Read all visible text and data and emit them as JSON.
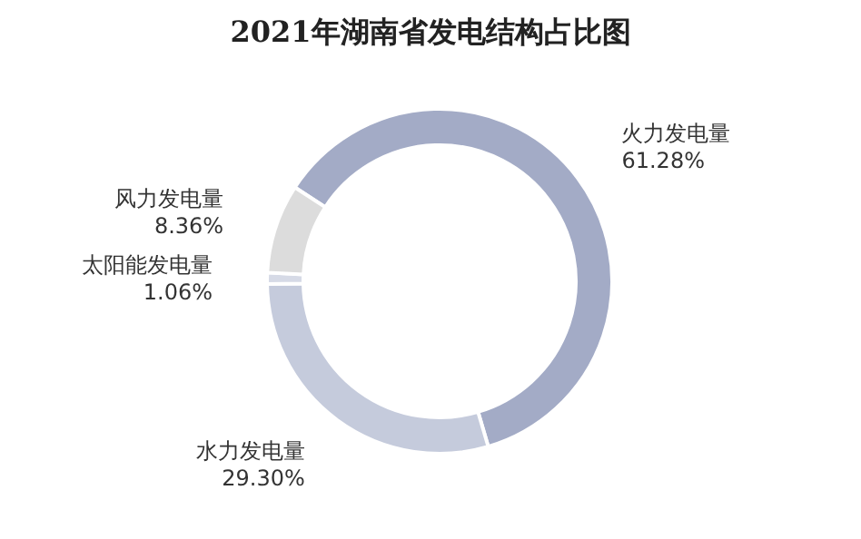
{
  "chart_data": {
    "type": "donut",
    "title": "2021年湖南省发电结构占比图",
    "categories": [
      "火力发电量",
      "水力发电量",
      "太阳能发电量",
      "风力发电量"
    ],
    "values": [
      61.28,
      29.3,
      1.06,
      8.36
    ],
    "colors": [
      "#a3abc6",
      "#c5cbdc",
      "#d6dae6",
      "#dcdcdc"
    ],
    "value_labels": [
      "61.28%",
      "29.30%",
      "1.06%",
      "8.36%"
    ],
    "legend": false
  }
}
